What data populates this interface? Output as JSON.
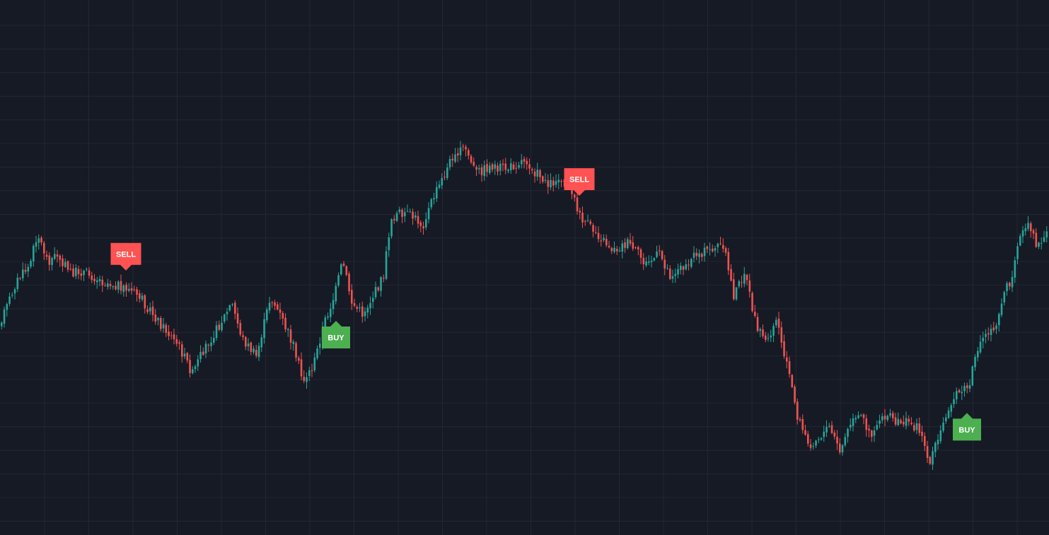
{
  "chart_data": {
    "type": "candlestick",
    "grid": true,
    "colors": {
      "background": "#161a25",
      "grid": "#232733",
      "up": "#26a69a",
      "down": "#ef5350",
      "buy_marker": "#4caf50",
      "sell_marker": "#ff5252"
    },
    "ylim": [
      0,
      757
    ],
    "price_trend": [
      [
        0,
        460
      ],
      [
        10,
        440
      ],
      [
        25,
        400
      ],
      [
        45,
        375
      ],
      [
        55,
        330
      ],
      [
        70,
        370
      ],
      [
        85,
        360
      ],
      [
        100,
        385
      ],
      [
        120,
        385
      ],
      [
        150,
        400
      ],
      [
        175,
        405
      ],
      [
        200,
        420
      ],
      [
        230,
        460
      ],
      [
        255,
        490
      ],
      [
        275,
        530
      ],
      [
        290,
        495
      ],
      [
        310,
        465
      ],
      [
        330,
        430
      ],
      [
        345,
        480
      ],
      [
        365,
        505
      ],
      [
        385,
        420
      ],
      [
        400,
        450
      ],
      [
        420,
        495
      ],
      [
        430,
        540
      ],
      [
        445,
        520
      ],
      [
        460,
        460
      ],
      [
        475,
        420
      ],
      [
        487,
        370
      ],
      [
        500,
        430
      ],
      [
        515,
        445
      ],
      [
        530,
        420
      ],
      [
        545,
        390
      ],
      [
        555,
        310
      ],
      [
        570,
        300
      ],
      [
        590,
        310
      ],
      [
        600,
        320
      ],
      [
        615,
        280
      ],
      [
        630,
        250
      ],
      [
        645,
        215
      ],
      [
        660,
        210
      ],
      [
        675,
        245
      ],
      [
        700,
        235
      ],
      [
        720,
        240
      ],
      [
        745,
        225
      ],
      [
        760,
        245
      ],
      [
        780,
        260
      ],
      [
        800,
        250
      ],
      [
        810,
        265
      ],
      [
        820,
        305
      ],
      [
        835,
        320
      ],
      [
        850,
        335
      ],
      [
        870,
        355
      ],
      [
        890,
        345
      ],
      [
        905,
        360
      ],
      [
        915,
        375
      ],
      [
        935,
        360
      ],
      [
        950,
        390
      ],
      [
        965,
        380
      ],
      [
        985,
        360
      ],
      [
        1005,
        355
      ],
      [
        1025,
        345
      ],
      [
        1040,
        420
      ],
      [
        1055,
        385
      ],
      [
        1070,
        455
      ],
      [
        1085,
        485
      ],
      [
        1100,
        450
      ],
      [
        1115,
        515
      ],
      [
        1130,
        590
      ],
      [
        1145,
        630
      ],
      [
        1160,
        620
      ],
      [
        1175,
        605
      ],
      [
        1190,
        640
      ],
      [
        1205,
        600
      ],
      [
        1220,
        590
      ],
      [
        1235,
        615
      ],
      [
        1250,
        585
      ],
      [
        1270,
        595
      ],
      [
        1290,
        600
      ],
      [
        1305,
        610
      ],
      [
        1315,
        655
      ],
      [
        1330,
        620
      ],
      [
        1345,
        570
      ],
      [
        1360,
        555
      ],
      [
        1375,
        545
      ],
      [
        1380,
        500
      ],
      [
        1395,
        475
      ],
      [
        1410,
        460
      ],
      [
        1420,
        420
      ],
      [
        1432,
        395
      ],
      [
        1440,
        345
      ],
      [
        1455,
        320
      ],
      [
        1470,
        350
      ],
      [
        1483,
        330
      ]
    ],
    "signals": [
      {
        "type": "sell",
        "label": "SELL",
        "x": 178
      },
      {
        "type": "buy",
        "label": "BUY",
        "x": 475
      },
      {
        "type": "sell",
        "label": "SELL",
        "x": 819
      },
      {
        "type": "buy",
        "label": "BUY",
        "x": 1367
      }
    ]
  }
}
